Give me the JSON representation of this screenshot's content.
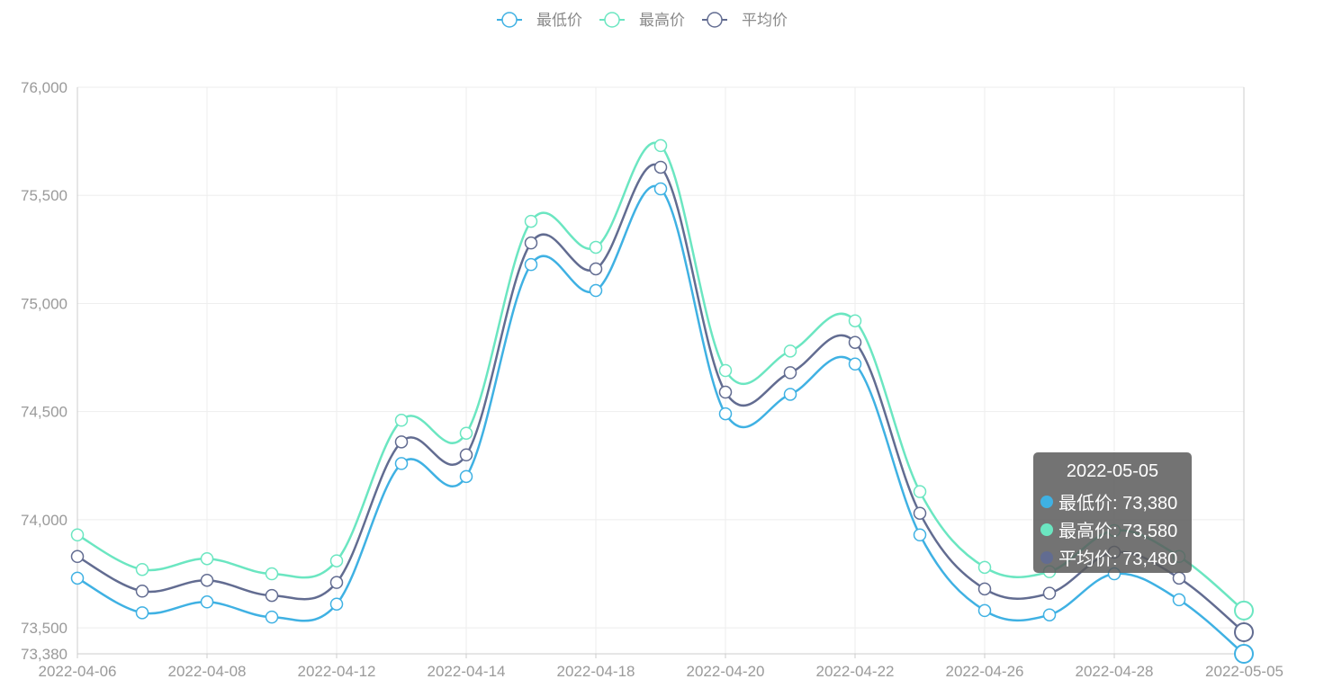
{
  "legend": [
    {
      "name": "最低价",
      "color": "#3fb1e3"
    },
    {
      "name": "最高价",
      "color": "#6be6c1"
    },
    {
      "name": "平均价",
      "color": "#626c91"
    }
  ],
  "tooltip": {
    "title": "2022-05-05",
    "rows": [
      {
        "label": "最低价: 73,380",
        "color": "#3fb1e3"
      },
      {
        "label": "最高价: 73,580",
        "color": "#6be6c1"
      },
      {
        "label": "平均价: 73,480",
        "color": "#626c91"
      }
    ]
  },
  "chart_data": {
    "type": "line",
    "smooth": true,
    "x": [
      "2022-04-06",
      "2022-04-07",
      "2022-04-08",
      "2022-04-11",
      "2022-04-12",
      "2022-04-13",
      "2022-04-14",
      "2022-04-15",
      "2022-04-18",
      "2022-04-19",
      "2022-04-20",
      "2022-04-21",
      "2022-04-22",
      "2022-04-25",
      "2022-04-26",
      "2022-04-27",
      "2022-04-28",
      "2022-04-29",
      "2022-05-05"
    ],
    "x_tick_labels": [
      "2022-04-06",
      "2022-04-08",
      "2022-04-12",
      "2022-04-14",
      "2022-04-18",
      "2022-04-20",
      "2022-04-22",
      "2022-04-26",
      "2022-04-28",
      "2022-05-05"
    ],
    "y_tick_labels": [
      "73,380",
      "73,500",
      "74,000",
      "74,500",
      "75,000",
      "75,500",
      "76,000"
    ],
    "y_ticks": [
      73380,
      73500,
      74000,
      74500,
      75000,
      75500,
      76000
    ],
    "ylim": [
      73380,
      76000
    ],
    "grid": true,
    "legend_position": "top-center",
    "series": [
      {
        "name": "最低价",
        "color": "#3fb1e3",
        "values": [
          73730,
          73570,
          73620,
          73550,
          73610,
          74260,
          74200,
          75180,
          75060,
          75530,
          74490,
          74580,
          74720,
          73930,
          73580,
          73560,
          73750,
          73630,
          73380
        ]
      },
      {
        "name": "最高价",
        "color": "#6be6c1",
        "values": [
          73930,
          73770,
          73820,
          73750,
          73810,
          74460,
          74400,
          75380,
          75260,
          75730,
          74690,
          74780,
          74920,
          74130,
          73780,
          73760,
          73950,
          73830,
          73580
        ]
      },
      {
        "name": "平均价",
        "color": "#626c91",
        "values": [
          73830,
          73670,
          73720,
          73650,
          73710,
          74360,
          74300,
          75280,
          75160,
          75630,
          74590,
          74680,
          74820,
          74030,
          73680,
          73660,
          73850,
          73730,
          73480
        ]
      }
    ]
  }
}
